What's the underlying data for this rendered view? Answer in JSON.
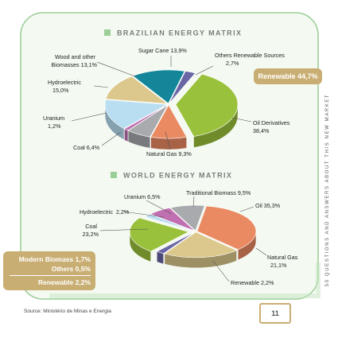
{
  "chart_data": [
    {
      "type": "pie",
      "title": "BRAZILIAN ENERGY MATRIX",
      "slices": [
        {
          "label": "Others Renewable Sources",
          "value": 2.7,
          "value_label": "2,7%",
          "color": "#6a66a6",
          "exploded": false
        },
        {
          "label": "Oil Derivatives",
          "value": 38.4,
          "value_label": "38,4%",
          "color": "#9ac13b",
          "exploded": true
        },
        {
          "label": "Natural Gas",
          "value": 9.3,
          "value_label": "9,3%",
          "color": "#e98a63",
          "exploded": false
        },
        {
          "label": "Coal",
          "value": 6.4,
          "value_label": "6,4%",
          "color": "#a8aaad",
          "exploded": false
        },
        {
          "label": "Uranium",
          "value": 1.2,
          "value_label": "1,2%",
          "color": "#c06fb0",
          "exploded": false
        },
        {
          "label": "Hydroelectric",
          "value": 15.0,
          "value_label": "15,0%",
          "color": "#b9def1",
          "exploded": false
        },
        {
          "label": "Wood and other Biomasses",
          "value": 13.1,
          "value_label": "13,1%",
          "color": "#dcc88c",
          "exploded": false
        },
        {
          "label": "Sugar Cane",
          "value": 13.9,
          "value_label": "13,9%",
          "color": "#13869a",
          "exploded": false
        }
      ]
    },
    {
      "type": "pie",
      "title": "WORLD ENERGY MATRIX",
      "slices": [
        {
          "label": "Oil",
          "value": 35.3,
          "value_label": "35,3%",
          "color": "#e98a63",
          "exploded": false
        },
        {
          "label": "Natural Gas",
          "value": 21.1,
          "value_label": "21,1%",
          "color": "#dcc88c",
          "exploded": false
        },
        {
          "label": "Renewable",
          "value": 2.2,
          "value_label": "2,2%",
          "color": "#6a66a6",
          "exploded": false
        },
        {
          "label": "Coal",
          "value": 23.2,
          "value_label": "23,2%",
          "color": "#9ac13b",
          "exploded": true
        },
        {
          "label": "Hydroelectric",
          "value": 2.2,
          "value_label": "2,2%",
          "color": "#b9def1",
          "exploded": false
        },
        {
          "label": "Uranium",
          "value": 6.5,
          "value_label": "6,5%",
          "color": "#c06fb0",
          "exploded": false
        },
        {
          "label": "Traditional Biomass",
          "value": 9.5,
          "value_label": "9,5%",
          "color": "#a8aaad",
          "exploded": false
        }
      ]
    }
  ],
  "labels": {
    "brazil": [
      {
        "lines": [
          "Sugar Cane 13,9%"
        ]
      },
      {
        "lines": [
          "Others Renewable Sources",
          "2,7%"
        ]
      },
      {
        "lines": [
          "Wood and other",
          "Biomasses 13,1%"
        ]
      },
      {
        "lines": [
          "Hydroelectric",
          "15,0%"
        ]
      },
      {
        "lines": [
          "Uranium",
          "1,2%"
        ]
      },
      {
        "lines": [
          "Coal 6,4%"
        ]
      },
      {
        "lines": [
          "Natural Gas 9,3%"
        ]
      },
      {
        "lines": [
          "Oil Derivatives",
          "38,4%"
        ]
      }
    ],
    "world": [
      {
        "lines": [
          "Uranium 6,5%"
        ]
      },
      {
        "lines": [
          "Traditional Biomass 9,5%"
        ]
      },
      {
        "lines": [
          "Hydroelectric  2,2%"
        ]
      },
      {
        "lines": [
          "Oil 35,3%"
        ]
      },
      {
        "lines": [
          "Coal",
          "23,2%"
        ]
      },
      {
        "lines": [
          "Natural Gas",
          "21,1%"
        ]
      },
      {
        "lines": [
          "Renewable 2,2%"
        ]
      }
    ]
  },
  "callouts": {
    "brazil_renewable": "Renewable 44,7%",
    "world_modern_biomass": "Modern Biomass 1,7%",
    "world_others": "Others 0,5%",
    "world_renewable": "Renewable 2,2%"
  },
  "side_text": "50 QUESTIONS AND ANSWERS ABOUT THIS NEW MARKET",
  "source": "Source: Ministério de Minas e Energia",
  "page_number": "11",
  "colors": {
    "frame_green": "#9ccf98",
    "panel_fill": "#f4faf1",
    "accent_gold": "#c9ae73",
    "title_text": "#7c7c7c"
  }
}
